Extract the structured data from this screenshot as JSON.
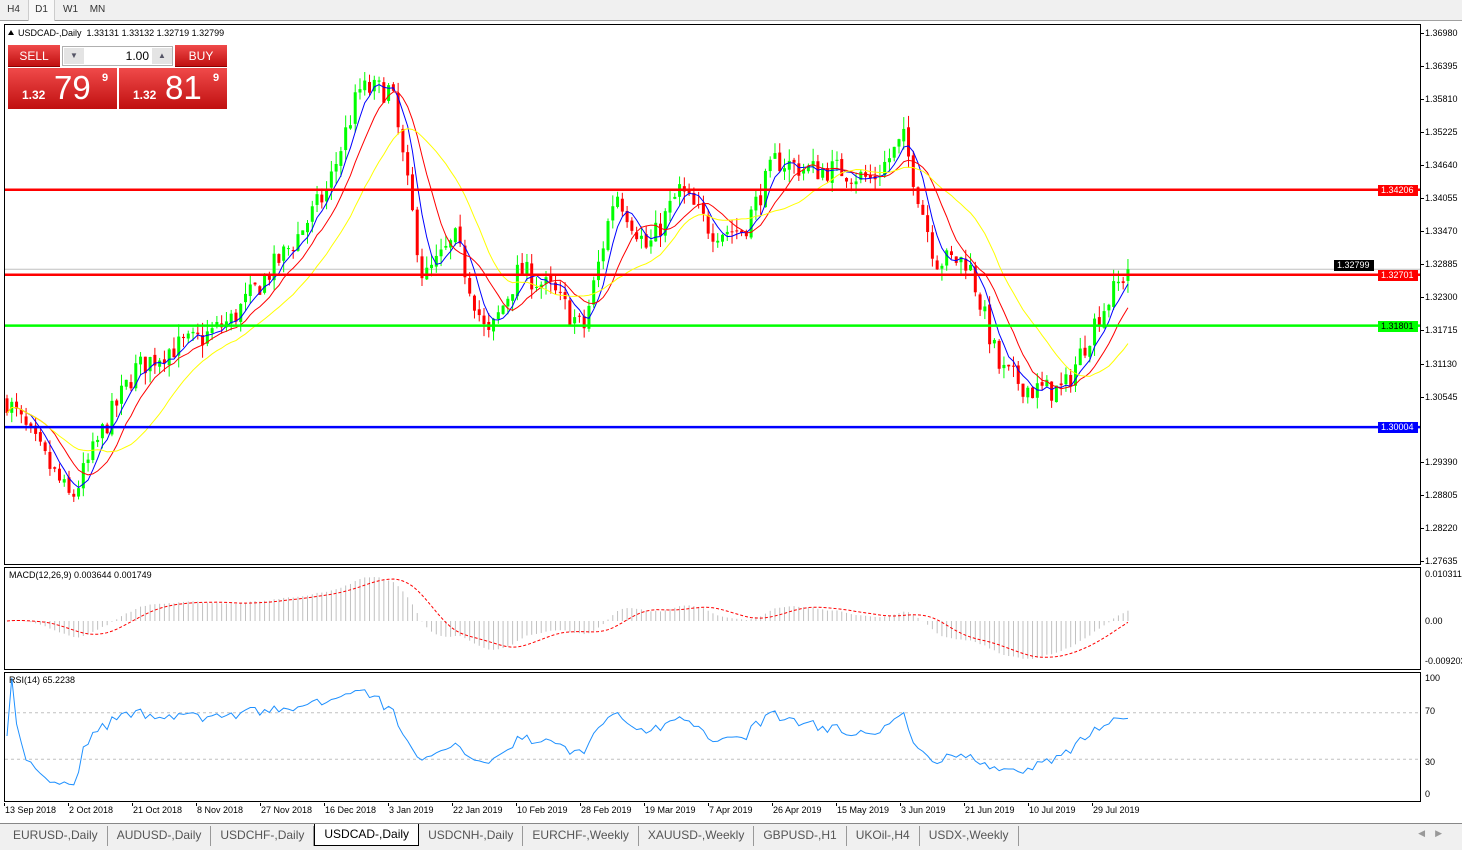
{
  "toolbar": {
    "timeframes": [
      "H4",
      "D1",
      "W1",
      "MN"
    ],
    "active": "D1"
  },
  "chart": {
    "title": "USDCAD-,Daily",
    "ohlc": "1.33131 1.33132 1.32719 1.32799",
    "trade_panel": {
      "sell_label": "SELL",
      "buy_label": "BUY",
      "lot": "1.00",
      "sell_prefix": "1.32",
      "sell_big": "79",
      "sell_sup": "9",
      "buy_prefix": "1.32",
      "buy_big": "81",
      "buy_sup": "9"
    },
    "price_axis": [
      "1.36980",
      "1.36395",
      "1.35810",
      "1.35225",
      "1.34640",
      "1.34055",
      "1.33470",
      "1.32885",
      "1.32300",
      "1.31715",
      "1.31130",
      "1.30545",
      "1.29390",
      "1.28805",
      "1.28220",
      "1.27635"
    ],
    "current_price": "1.32799",
    "hlines": [
      {
        "price": "1.34206",
        "color": "#ff0000"
      },
      {
        "price": "1.32701",
        "color": "#ff0000"
      },
      {
        "price": "1.31801",
        "color": "#00ff00"
      },
      {
        "price": "1.30004",
        "color": "#0000ff"
      }
    ],
    "date_axis": [
      "13 Sep 2018",
      "2 Oct 2018",
      "21 Oct 2018",
      "8 Nov 2018",
      "27 Nov 2018",
      "16 Dec 2018",
      "3 Jan 2019",
      "22 Jan 2019",
      "10 Feb 2019",
      "28 Feb 2019",
      "19 Mar 2019",
      "7 Apr 2019",
      "26 Apr 2019",
      "15 May 2019",
      "3 Jun 2019",
      "21 Jun 2019",
      "10 Jul 2019",
      "29 Jul 2019"
    ],
    "colors": {
      "bull": "#00ff00",
      "bear": "#ff0000",
      "ma_fast": "#0000ff",
      "ma_mid": "#ff0000",
      "ma_slow": "#ffff00",
      "macd_hist": "#c0c0c0",
      "macd_signal": "#ff0000",
      "rsi": "#1e90ff"
    },
    "macd": {
      "title": "MACD(12,26,9) 0.003644 0.001749",
      "axis": [
        "0.010311",
        "0.00",
        "-0.009203"
      ]
    },
    "rsi": {
      "title": "RSI(14) 65.2238",
      "axis": [
        "100",
        "70",
        "30",
        "0"
      ],
      "levels": [
        70,
        30
      ]
    }
  },
  "chart_data": {
    "type": "candlestick",
    "symbol": "USDCAD-",
    "timeframe": "Daily",
    "ylim": [
      1.27635,
      1.3698
    ],
    "approx_closes": [
      [
        "13 Sep 2018",
        1.3048
      ],
      [
        "22 Sep 2018",
        1.296
      ],
      [
        "2 Oct 2018",
        1.2871
      ],
      [
        "11 Oct 2018",
        1.2995
      ],
      [
        "21 Oct 2018",
        1.3102
      ],
      [
        "30 Oct 2018",
        1.3137
      ],
      [
        "8 Nov 2018",
        1.3155
      ],
      [
        "17 Nov 2018",
        1.319
      ],
      [
        "27 Nov 2018",
        1.3261
      ],
      [
        "6 Dec 2018",
        1.3332
      ],
      [
        "16 Dec 2018",
        1.342
      ],
      [
        "25 Dec 2018",
        1.3597
      ],
      [
        "3 Jan 2019",
        1.3597
      ],
      [
        "12 Jan 2019",
        1.3261
      ],
      [
        "22 Jan 2019",
        1.3332
      ],
      [
        "31 Jan 2019",
        1.3155
      ],
      [
        "10 Feb 2019",
        1.3279
      ],
      [
        "19 Feb 2019",
        1.3243
      ],
      [
        "28 Feb 2019",
        1.3172
      ],
      [
        "9 Mar 2019",
        1.342
      ],
      [
        "19 Mar 2019",
        1.3314
      ],
      [
        "28 Mar 2019",
        1.342
      ],
      [
        "7 Apr 2019",
        1.3349
      ],
      [
        "16 Apr 2019",
        1.3349
      ],
      [
        "26 Apr 2019",
        1.3473
      ],
      [
        "5 May 2019",
        1.3456
      ],
      [
        "15 May 2019",
        1.3456
      ],
      [
        "24 May 2019",
        1.3438
      ],
      [
        "3 Jun 2019",
        1.3509
      ],
      [
        "12 Jun 2019",
        1.3296
      ],
      [
        "21 Jun 2019",
        1.3296
      ],
      [
        "30 Jun 2019",
        1.3102
      ],
      [
        "10 Jul 2019",
        1.3066
      ],
      [
        "19 Jul 2019",
        1.3066
      ],
      [
        "29 Jul 2019",
        1.319
      ],
      [
        "8 Aug 2019",
        1.32799
      ]
    ],
    "indicators": [
      "MA blue",
      "MA red",
      "MA yellow",
      "MACD(12,26,9)",
      "RSI(14)"
    ]
  },
  "tabs": [
    "EURUSD-,Daily",
    "AUDUSD-,Daily",
    "USDCHF-,Daily",
    "USDCAD-,Daily",
    "USDCNH-,Daily",
    "EURCHF-,Weekly",
    "XAUUSD-,Weekly",
    "GBPUSD-,H1",
    "UKOil-,H4",
    "USDX-,Weekly"
  ],
  "active_tab": "USDCAD-,Daily"
}
